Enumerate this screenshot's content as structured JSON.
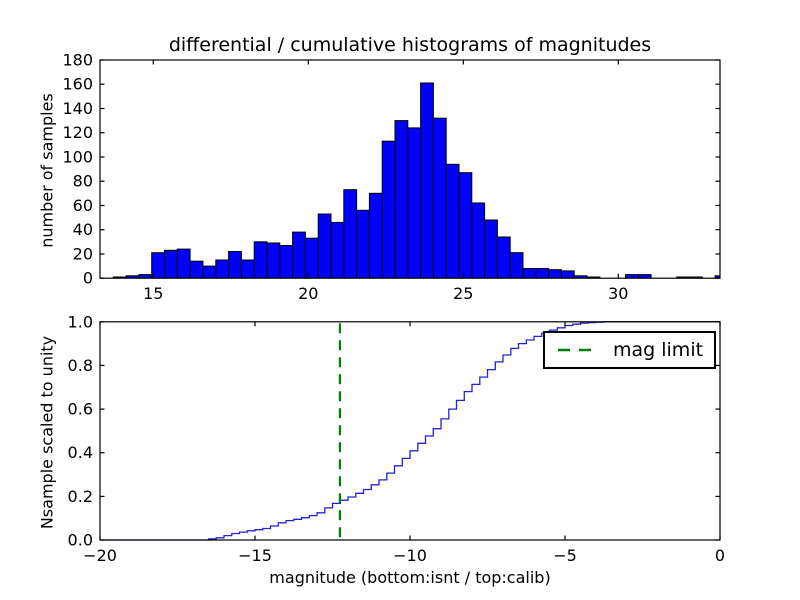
{
  "figure": {
    "title": "differential / cumulative histograms of magnitudes",
    "xlabel": "magnitude (bottom:isnt / top:calib)",
    "background": "#ffffff"
  },
  "colors": {
    "hist_fill": "#0000ff",
    "hist_edge": "#000000",
    "curve_line": "#2323d2",
    "mag_limit_line": "#008000",
    "axis": "#000000"
  },
  "legend": {
    "label": "mag limit",
    "position": "upper right"
  },
  "chart_data": [
    {
      "type": "bar",
      "name": "differential-histogram-top",
      "ylabel": "number of samples",
      "xlim": [
        13.28,
        33.28
      ],
      "ylim": [
        0,
        180
      ],
      "xtick_values": [
        15,
        20,
        25,
        30
      ],
      "xtick_labels": [
        "15",
        "20",
        "25",
        "30"
      ],
      "ytick_values": [
        0,
        20,
        40,
        60,
        80,
        100,
        120,
        140,
        160,
        180
      ],
      "ytick_labels": [
        "0",
        "20",
        "40",
        "60",
        "80",
        "100",
        "120",
        "140",
        "160",
        "180"
      ],
      "grid": false,
      "bin_start": 13.71,
      "bin_width": 0.413,
      "counts": [
        1,
        2,
        3,
        21,
        23,
        24,
        14,
        10,
        15,
        22,
        15,
        30,
        29,
        27,
        38,
        33,
        53,
        46,
        73,
        56,
        70,
        113,
        130,
        124,
        161,
        132,
        94,
        87,
        62,
        48,
        34,
        21,
        8,
        8,
        7,
        6,
        2,
        1,
        0,
        0,
        3,
        3,
        0,
        0,
        1,
        1,
        0,
        2
      ]
    },
    {
      "type": "line",
      "name": "cumulative-histogram-bottom",
      "ylabel": "Nsample scaled to unity",
      "xlabel": "magnitude (bottom:isnt / top:calib)",
      "xlim": [
        -20,
        0
      ],
      "ylim": [
        0.0,
        1.0
      ],
      "xtick_values": [
        -20,
        -15,
        -10,
        -5,
        0
      ],
      "xtick_labels": [
        "−20",
        "−15",
        "−10",
        "−5",
        "0"
      ],
      "ytick_values": [
        0.0,
        0.2,
        0.4,
        0.6,
        0.8,
        1.0
      ],
      "ytick_labels": [
        "0.0",
        "0.2",
        "0.4",
        "0.6",
        "0.8",
        "1.0"
      ],
      "grid": false,
      "line_style": "steps",
      "step_width": 0.25,
      "curve_anchors": [
        [
          -20.0,
          0.0
        ],
        [
          -16.5,
          0.0
        ],
        [
          -16.0,
          0.01
        ],
        [
          -15.5,
          0.03
        ],
        [
          -15.0,
          0.042
        ],
        [
          -14.4,
          0.055
        ],
        [
          -13.9,
          0.085
        ],
        [
          -13.3,
          0.1
        ],
        [
          -12.8,
          0.12
        ],
        [
          -12.3,
          0.165
        ],
        [
          -11.7,
          0.2
        ],
        [
          -11.2,
          0.235
        ],
        [
          -10.7,
          0.28
        ],
        [
          -10.1,
          0.36
        ],
        [
          -9.6,
          0.43
        ],
        [
          -9.0,
          0.51
        ],
        [
          -8.5,
          0.6
        ],
        [
          -8.0,
          0.68
        ],
        [
          -7.4,
          0.76
        ],
        [
          -6.9,
          0.83
        ],
        [
          -6.4,
          0.89
        ],
        [
          -5.8,
          0.93
        ],
        [
          -5.3,
          0.96
        ],
        [
          -4.7,
          0.985
        ],
        [
          -4.2,
          0.995
        ],
        [
          -3.5,
          1.0
        ],
        [
          0.0,
          1.0
        ]
      ],
      "mag_limit": -12.26,
      "legend_label": "mag limit"
    }
  ]
}
